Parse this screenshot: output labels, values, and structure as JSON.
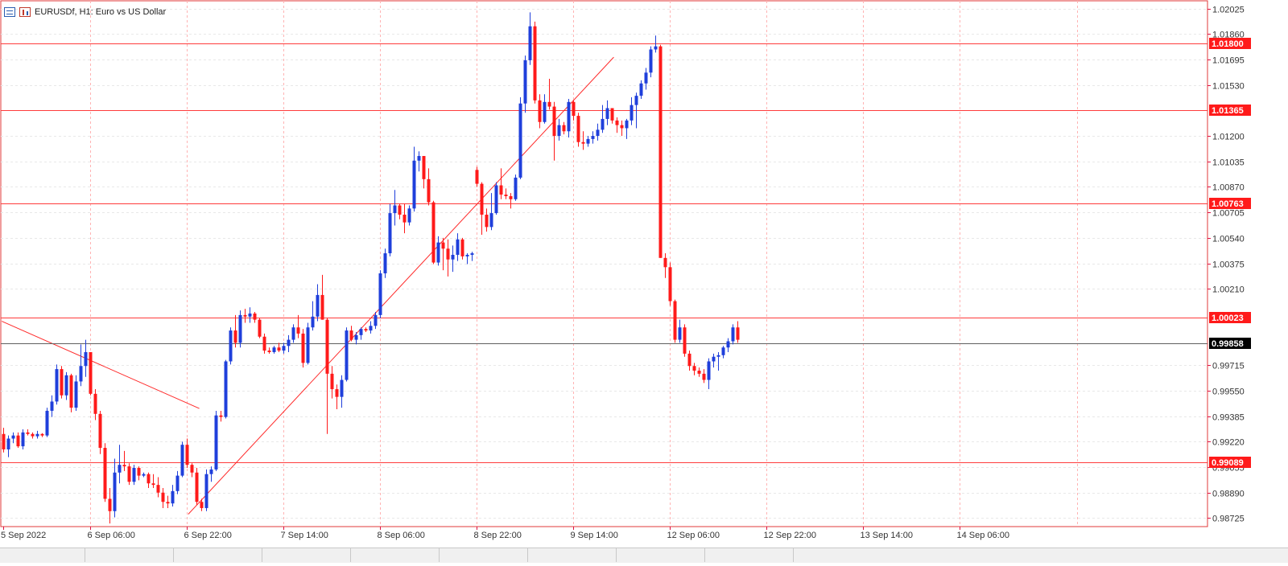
{
  "header": {
    "symbol_text": "EURUSDf, H1:  Euro vs US Dollar",
    "icons": [
      "list-icon",
      "chart-bars-icon"
    ]
  },
  "colors": {
    "bull": "#1f3fdb",
    "bear": "#ff1a1a",
    "grid": "#e8e8e8",
    "vgrid": "#ffb3b3",
    "level": "#ff3b3b",
    "current": "#606060",
    "trend": "#ff2a2a",
    "axis_text": "#333333",
    "label_bg": "#ff1a1a",
    "current_label_bg": "#000000"
  },
  "chart_data": {
    "type": "candlestick",
    "symbol": "EURUSDf",
    "timeframe": "H1",
    "description": "Euro vs US Dollar",
    "ylim": [
      0.9867,
      1.02075
    ],
    "y_ticks": [
      "1.02025",
      "1.01860",
      "1.01695",
      "1.01530",
      "1.01200",
      "1.01035",
      "1.00870",
      "1.00705",
      "1.00540",
      "1.00375",
      "1.00210",
      "0.99715",
      "0.99550",
      "0.99385",
      "0.99220",
      "0.99055",
      "0.98890",
      "0.98725"
    ],
    "y_tick_values": [
      1.02025,
      1.0186,
      1.01695,
      1.0153,
      1.012,
      1.01035,
      1.0087,
      1.00705,
      1.0054,
      1.00375,
      1.0021,
      0.99715,
      0.9955,
      0.99385,
      0.9922,
      0.99055,
      0.9889,
      0.98725
    ],
    "x_labels": [
      {
        "bar": 0,
        "label": "5 Sep 2022"
      },
      {
        "bar": 18,
        "label": "6 Sep 06:00"
      },
      {
        "bar": 38,
        "label": "6 Sep 22:00"
      },
      {
        "bar": 58,
        "label": "7 Sep 14:00"
      },
      {
        "bar": 78,
        "label": "8 Sep 06:00"
      },
      {
        "bar": 98,
        "label": "8 Sep 22:00"
      },
      {
        "bar": 118,
        "label": "9 Sep 14:00"
      },
      {
        "bar": 138,
        "label": "12 Sep 06:00"
      },
      {
        "bar": 158,
        "label": "12 Sep 22:00"
      },
      {
        "bar": 178,
        "label": "13 Sep 14:00"
      },
      {
        "bar": 198,
        "label": "14 Sep 06:00"
      }
    ],
    "horizontal_levels": [
      {
        "price": 1.018,
        "label": "1.01800"
      },
      {
        "price": 1.01365,
        "label": "1.01365"
      },
      {
        "price": 1.00763,
        "label": "1.00763"
      },
      {
        "price": 1.00023,
        "label": "1.00023"
      },
      {
        "price": 0.99089,
        "label": "0.99089"
      }
    ],
    "current_price": {
      "price": 0.99858,
      "label": "0.99858"
    },
    "trendlines": [
      {
        "from": {
          "bar": -0.3,
          "price": 1.0
        },
        "to": {
          "bar": 40.6,
          "price": 0.99435
        }
      },
      {
        "from": {
          "bar": 38.3,
          "price": 0.9875
        },
        "to": {
          "bar": 126.4,
          "price": 1.0171
        }
      }
    ],
    "candles": [
      [
        0.9927,
        0.9931,
        0.9915,
        0.9917
      ],
      [
        0.9917,
        0.9926,
        0.9912,
        0.9924
      ],
      [
        0.9924,
        0.9928,
        0.9921,
        0.9926
      ],
      [
        0.9926,
        0.9928,
        0.9918,
        0.9919
      ],
      [
        0.9919,
        0.993,
        0.9917,
        0.9928
      ],
      [
        0.9928,
        0.993,
        0.9926,
        0.9927
      ],
      [
        0.9927,
        0.9928,
        0.9924,
        0.99255
      ],
      [
        0.99255,
        0.9929,
        0.9924,
        0.9927
      ],
      [
        0.9927,
        0.99275,
        0.9925,
        0.9926
      ],
      [
        0.9926,
        0.9944,
        0.9925,
        0.9942
      ],
      [
        0.9942,
        0.9952,
        0.9938,
        0.9948
      ],
      [
        0.9948,
        0.9972,
        0.9946,
        0.9969
      ],
      [
        0.9969,
        0.9971,
        0.995,
        0.9952
      ],
      [
        0.9952,
        0.9967,
        0.9949,
        0.9965
      ],
      [
        0.9965,
        0.9966,
        0.9941,
        0.9944
      ],
      [
        0.9944,
        0.9965,
        0.9942,
        0.9961
      ],
      [
        0.9961,
        0.9985,
        0.9958,
        0.9971
      ],
      [
        0.9971,
        0.9988,
        0.9964,
        0.998
      ],
      [
        0.998,
        0.998,
        0.9952,
        0.9953
      ],
      [
        0.9953,
        0.9956,
        0.9936,
        0.994
      ],
      [
        0.994,
        0.9942,
        0.9914,
        0.9918
      ],
      [
        0.9918,
        0.9921,
        0.9883,
        0.9885
      ],
      [
        0.9885,
        0.9892,
        0.9869,
        0.9877
      ],
      [
        0.9877,
        0.9911,
        0.9873,
        0.9902
      ],
      [
        0.9902,
        0.992,
        0.9895,
        0.9907
      ],
      [
        0.9907,
        0.9916,
        0.9903,
        0.9906
      ],
      [
        0.9906,
        0.9908,
        0.9894,
        0.9896
      ],
      [
        0.9896,
        0.9907,
        0.9894,
        0.9905
      ],
      [
        0.9905,
        0.9906,
        0.9897,
        0.99
      ],
      [
        0.99,
        0.9902,
        0.9899,
        0.9901
      ],
      [
        0.9901,
        0.9902,
        0.9892,
        0.9895
      ],
      [
        0.9895,
        0.9901,
        0.9892,
        0.9894
      ],
      [
        0.9894,
        0.9899,
        0.9886,
        0.9889
      ],
      [
        0.9889,
        0.9892,
        0.9879,
        0.9883
      ],
      [
        0.9883,
        0.9887,
        0.9879,
        0.9882
      ],
      [
        0.9882,
        0.9894,
        0.988,
        0.989
      ],
      [
        0.989,
        0.9903,
        0.9888,
        0.99
      ],
      [
        0.99,
        0.9922,
        0.9899,
        0.992
      ],
      [
        0.992,
        0.9924,
        0.9905,
        0.9907
      ],
      [
        0.9907,
        0.9908,
        0.9899,
        0.9902
      ],
      [
        0.9902,
        0.9905,
        0.9881,
        0.9883
      ],
      [
        0.9883,
        0.9885,
        0.9877,
        0.9879
      ],
      [
        0.9879,
        0.9904,
        0.9877,
        0.9901
      ],
      [
        0.9901,
        0.9906,
        0.9896,
        0.9904
      ],
      [
        0.9904,
        0.9942,
        0.9903,
        0.9939
      ],
      [
        0.9939,
        0.9942,
        0.9935,
        0.9938
      ],
      [
        0.9938,
        0.9975,
        0.9937,
        0.9974
      ],
      [
        0.9974,
        0.9996,
        0.9972,
        0.9994
      ],
      [
        0.9994,
        1.0004,
        0.9983,
        0.9986
      ],
      [
        0.9986,
        1.0007,
        0.9983,
        1.0004
      ],
      [
        1.0004,
        1.0008,
        0.9999,
        1.0003
      ],
      [
        1.0003,
        1.0009,
        0.9999,
        1.0005
      ],
      [
        1.0005,
        1.0006,
        0.9999,
        1.0001
      ],
      [
        1.0001,
        1.0002,
        0.9989,
        0.999
      ],
      [
        0.999,
        0.9992,
        0.9979,
        0.9981
      ],
      [
        0.9981,
        0.9983,
        0.9979,
        0.998
      ],
      [
        0.998,
        0.9984,
        0.9979,
        0.9983
      ],
      [
        0.9983,
        0.9986,
        0.998,
        0.9981
      ],
      [
        0.9981,
        0.9986,
        0.9979,
        0.9984
      ],
      [
        0.9984,
        0.9991,
        0.998,
        0.9988
      ],
      [
        0.9988,
        0.9998,
        0.9986,
        0.9996
      ],
      [
        0.9996,
        1.0004,
        0.9989,
        0.9992
      ],
      [
        0.9992,
        0.9995,
        0.997,
        0.9973
      ],
      [
        0.9973,
        0.9999,
        0.9972,
        0.9996
      ],
      [
        0.9996,
        1.0013,
        0.9994,
        1.0003
      ],
      [
        1.0003,
        1.0024,
        1.0,
        1.0017
      ],
      [
        1.0017,
        1.003,
        1.0001,
        1.0001
      ],
      [
        1.0001,
        1.0002,
        0.9927,
        0.9966
      ],
      [
        0.9966,
        0.9971,
        0.995,
        0.9956
      ],
      [
        0.9956,
        0.9959,
        0.9943,
        0.9951
      ],
      [
        0.9951,
        0.9965,
        0.9944,
        0.9962
      ],
      [
        0.9962,
        0.9996,
        0.9961,
        0.9994
      ],
      [
        0.9994,
        0.9997,
        0.9987,
        0.9988
      ],
      [
        0.9988,
        0.9993,
        0.9985,
        0.9991
      ],
      [
        0.9991,
        0.9996,
        0.9988,
        0.9995
      ],
      [
        0.9995,
        0.9996,
        0.9993,
        0.9994
      ],
      [
        0.9994,
        1.0,
        0.9992,
        0.9997
      ],
      [
        0.9997,
        1.0006,
        0.9995,
        1.0004
      ],
      [
        1.0004,
        1.0033,
        1.0002,
        1.0031
      ],
      [
        1.0031,
        1.0047,
        1.0028,
        1.0044
      ],
      [
        1.0044,
        1.0076,
        1.0042,
        1.007
      ],
      [
        1.007,
        1.0085,
        1.0062,
        1.0075
      ],
      [
        1.0075,
        1.0076,
        1.0066,
        1.0069
      ],
      [
        1.0069,
        1.0076,
        1.0057,
        1.0064
      ],
      [
        1.0064,
        1.0075,
        1.0062,
        1.0073
      ],
      [
        1.0073,
        1.0113,
        1.0071,
        1.0104
      ],
      [
        1.0104,
        1.011,
        1.0097,
        1.0107
      ],
      [
        1.0107,
        1.0107,
        1.0086,
        1.0092
      ],
      [
        1.0092,
        1.0099,
        1.0075,
        1.0077
      ],
      [
        1.0077,
        1.0078,
        1.0037,
        1.0038
      ],
      [
        1.0038,
        1.0055,
        1.0036,
        1.0051
      ],
      [
        1.0051,
        1.0054,
        1.0033,
        1.0047
      ],
      [
        1.0047,
        1.0053,
        1.0029,
        1.004
      ],
      [
        1.004,
        1.0049,
        1.0032,
        1.0043
      ],
      [
        1.0043,
        1.0057,
        1.0039,
        1.0053
      ],
      [
        1.0053,
        1.0054,
        1.004,
        1.0042
      ],
      [
        1.0042,
        1.0044,
        1.0037,
        1.0043
      ],
      [
        1.0043,
        1.0045,
        1.0039,
        1.0044
      ],
      [
        1.0098,
        1.01,
        1.0087,
        1.0089
      ],
      [
        1.0089,
        1.009,
        1.0056,
        1.0069
      ],
      [
        1.0069,
        1.0073,
        1.0058,
        1.0061
      ],
      [
        1.0061,
        1.0083,
        1.0059,
        1.007
      ],
      [
        1.007,
        1.009,
        1.0069,
        1.0088
      ],
      [
        1.0088,
        1.0099,
        1.0079,
        1.0082
      ],
      [
        1.0082,
        1.0086,
        1.0079,
        1.0081
      ],
      [
        1.0081,
        1.0083,
        1.0073,
        1.0079
      ],
      [
        1.0079,
        1.0095,
        1.0078,
        1.0093
      ],
      [
        1.0093,
        1.0145,
        1.0092,
        1.0141
      ],
      [
        1.0141,
        1.0172,
        1.0135,
        1.0169
      ],
      [
        1.0169,
        1.02,
        1.0166,
        1.0191
      ],
      [
        1.0191,
        1.0194,
        1.0141,
        1.0143
      ],
      [
        1.0143,
        1.0147,
        1.0125,
        1.0129
      ],
      [
        1.0129,
        1.0147,
        1.0128,
        1.0142
      ],
      [
        1.0142,
        1.0157,
        1.0137,
        1.0139
      ],
      [
        1.0139,
        1.0142,
        1.0104,
        1.012
      ],
      [
        1.012,
        1.0131,
        1.0117,
        1.0127
      ],
      [
        1.0127,
        1.0129,
        1.0121,
        1.0123
      ],
      [
        1.0123,
        1.0144,
        1.0119,
        1.0142
      ],
      [
        1.0142,
        1.0143,
        1.013,
        1.0133
      ],
      [
        1.0133,
        1.0135,
        1.0113,
        1.0116
      ],
      [
        1.0116,
        1.0123,
        1.0111,
        1.0115
      ],
      [
        1.0115,
        1.012,
        1.0113,
        1.0118
      ],
      [
        1.0118,
        1.0123,
        1.0115,
        1.012
      ],
      [
        1.012,
        1.0128,
        1.0117,
        1.0124
      ],
      [
        1.0124,
        1.014,
        1.0122,
        1.0131
      ],
      [
        1.0131,
        1.0143,
        1.0127,
        1.0138
      ],
      [
        1.0138,
        1.0138,
        1.0128,
        1.013
      ],
      [
        1.013,
        1.0132,
        1.0122,
        1.0127
      ],
      [
        1.0127,
        1.013,
        1.012,
        1.0125
      ],
      [
        1.0125,
        1.0131,
        1.0118,
        1.013
      ],
      [
        1.013,
        1.0145,
        1.0127,
        1.014
      ],
      [
        1.014,
        1.0148,
        1.0125,
        1.0146
      ],
      [
        1.0146,
        1.0156,
        1.0144,
        1.0154
      ],
      [
        1.0154,
        1.0164,
        1.015,
        1.0161
      ],
      [
        1.0161,
        1.0178,
        1.0158,
        1.0176
      ],
      [
        1.0176,
        1.0185,
        1.0174,
        1.0178
      ],
      [
        1.0178,
        1.0179,
        1.0041,
        1.0041
      ],
      [
        1.0041,
        1.0044,
        1.0028,
        1.0035
      ],
      [
        1.0035,
        1.0038,
        1.001,
        1.0013
      ],
      [
        1.0013,
        1.0014,
        0.9986,
        0.9988
      ],
      [
        0.9988,
        1.0001,
        0.9986,
        0.9996
      ],
      [
        0.9996,
        0.9998,
        0.9977,
        0.9979
      ],
      [
        0.9979,
        0.9981,
        0.9968,
        0.9971
      ],
      [
        0.9971,
        0.9973,
        0.9965,
        0.9968
      ],
      [
        0.9968,
        0.997,
        0.9964,
        0.9966
      ],
      [
        0.9966,
        0.9969,
        0.996,
        0.9962
      ],
      [
        0.9962,
        0.9976,
        0.9956,
        0.9974
      ],
      [
        0.9974,
        0.9979,
        0.997,
        0.9977
      ],
      [
        0.9977,
        0.998,
        0.9968,
        0.9978
      ],
      [
        0.9978,
        0.9984,
        0.9976,
        0.9983
      ],
      [
        0.9983,
        0.9989,
        0.998,
        0.9987
      ],
      [
        0.9987,
        0.9998,
        0.9985,
        0.9996
      ],
      [
        0.9996,
        1.0,
        0.9986,
        0.9988
      ]
    ]
  }
}
